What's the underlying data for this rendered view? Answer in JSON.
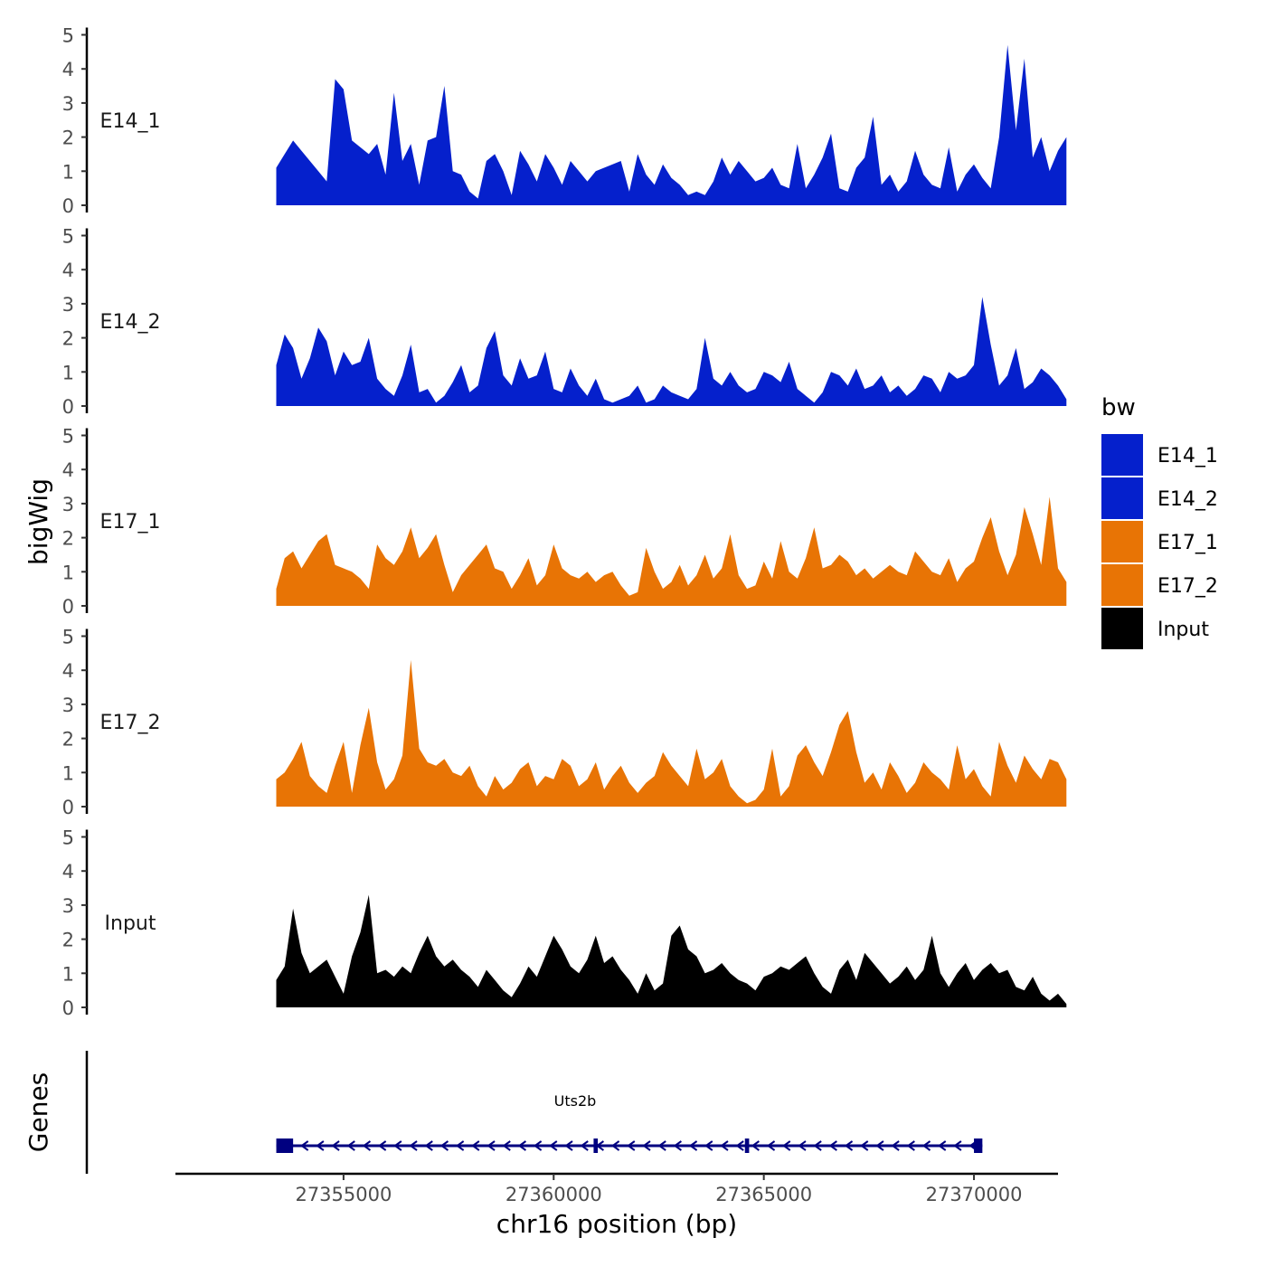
{
  "chart_data": {
    "type": "area",
    "ylabel": "bigWig",
    "xlabel": "chr16 position (bp)",
    "ylim": [
      0,
      5
    ],
    "yticks": [
      0,
      1,
      2,
      3,
      4,
      5
    ],
    "xlim": [
      27351000,
      27372000
    ],
    "xticks": [
      27355000,
      27360000,
      27365000,
      27370000
    ],
    "x": [
      27353400,
      27353600,
      27353800,
      27354000,
      27354200,
      27354400,
      27354600,
      27354800,
      27355000,
      27355200,
      27355400,
      27355600,
      27355800,
      27356000,
      27356200,
      27356400,
      27356600,
      27356800,
      27357000,
      27357200,
      27357400,
      27357600,
      27357800,
      27358000,
      27358200,
      27358400,
      27358600,
      27358800,
      27359000,
      27359200,
      27359400,
      27359600,
      27359800,
      27360000,
      27360200,
      27360400,
      27360600,
      27360800,
      27361000,
      27361200,
      27361400,
      27361600,
      27361800,
      27362000,
      27362200,
      27362400,
      27362600,
      27362800,
      27363000,
      27363200,
      27363400,
      27363600,
      27363800,
      27364000,
      27364200,
      27364400,
      27364600,
      27364800,
      27365000,
      27365200,
      27365400,
      27365600,
      27365800,
      27366000,
      27366200,
      27366400,
      27366600,
      27366800,
      27367000,
      27367200,
      27367400,
      27367600,
      27367800,
      27368000,
      27368200,
      27368400,
      27368600,
      27368800,
      27369000,
      27369200,
      27369400,
      27369600,
      27369800,
      27370000,
      27370200,
      27370400,
      27370600,
      27370800,
      27371000,
      27371200,
      27371400,
      27371600,
      27371800,
      27372000,
      27372200
    ],
    "series": [
      {
        "name": "E14_1",
        "color": "#0520CC",
        "values": [
          1.1,
          1.5,
          1.9,
          1.6,
          1.3,
          1.0,
          0.7,
          3.7,
          3.4,
          1.9,
          1.7,
          1.5,
          1.8,
          0.9,
          3.3,
          1.3,
          1.8,
          0.6,
          1.9,
          2.0,
          3.5,
          1.0,
          0.9,
          0.4,
          0.2,
          1.3,
          1.5,
          1.0,
          0.3,
          1.6,
          1.2,
          0.7,
          1.5,
          1.1,
          0.6,
          1.3,
          1.0,
          0.7,
          1.0,
          1.1,
          1.2,
          1.3,
          0.4,
          1.5,
          0.9,
          0.6,
          1.2,
          0.8,
          0.6,
          0.3,
          0.4,
          0.3,
          0.7,
          1.4,
          0.9,
          1.3,
          1.0,
          0.7,
          0.8,
          1.1,
          0.6,
          0.5,
          1.8,
          0.5,
          0.9,
          1.4,
          2.1,
          0.5,
          0.4,
          1.1,
          1.4,
          2.6,
          0.6,
          0.9,
          0.4,
          0.7,
          1.6,
          0.9,
          0.6,
          0.5,
          1.7,
          0.4,
          0.9,
          1.2,
          0.8,
          0.5,
          2.0,
          4.7,
          2.2,
          4.3,
          1.4,
          2.0,
          1.0,
          1.6,
          2.0
        ]
      },
      {
        "name": "E14_2",
        "color": "#0520CC",
        "values": [
          1.2,
          2.1,
          1.7,
          0.8,
          1.4,
          2.3,
          1.9,
          0.9,
          1.6,
          1.2,
          1.3,
          2.0,
          0.8,
          0.5,
          0.3,
          0.9,
          1.8,
          0.4,
          0.5,
          0.1,
          0.3,
          0.7,
          1.2,
          0.4,
          0.6,
          1.7,
          2.2,
          0.9,
          0.6,
          1.4,
          0.8,
          0.9,
          1.6,
          0.5,
          0.4,
          1.1,
          0.6,
          0.3,
          0.8,
          0.2,
          0.1,
          0.2,
          0.3,
          0.6,
          0.1,
          0.2,
          0.6,
          0.4,
          0.3,
          0.2,
          0.5,
          2.0,
          0.8,
          0.6,
          1.0,
          0.6,
          0.4,
          0.5,
          1.0,
          0.9,
          0.7,
          1.3,
          0.5,
          0.3,
          0.1,
          0.4,
          1.0,
          0.9,
          0.6,
          1.1,
          0.5,
          0.6,
          0.9,
          0.4,
          0.6,
          0.3,
          0.5,
          0.9,
          0.8,
          0.4,
          1.0,
          0.8,
          0.9,
          1.2,
          3.2,
          1.8,
          0.6,
          0.9,
          1.7,
          0.5,
          0.7,
          1.1,
          0.9,
          0.6,
          0.2
        ]
      },
      {
        "name": "E17_1",
        "color": "#E87405",
        "values": [
          0.5,
          1.4,
          1.6,
          1.1,
          1.5,
          1.9,
          2.1,
          1.2,
          1.1,
          1.0,
          0.8,
          0.5,
          1.8,
          1.4,
          1.2,
          1.6,
          2.3,
          1.4,
          1.7,
          2.1,
          1.2,
          0.4,
          0.9,
          1.2,
          1.5,
          1.8,
          1.1,
          1.0,
          0.5,
          0.9,
          1.4,
          0.6,
          0.9,
          1.8,
          1.1,
          0.9,
          0.8,
          1.0,
          0.7,
          0.9,
          1.0,
          0.6,
          0.3,
          0.4,
          1.7,
          1.0,
          0.5,
          0.7,
          1.2,
          0.6,
          0.9,
          1.5,
          0.8,
          1.1,
          2.1,
          0.9,
          0.5,
          0.6,
          1.3,
          0.8,
          1.9,
          1.0,
          0.8,
          1.4,
          2.3,
          1.1,
          1.2,
          1.5,
          1.3,
          0.9,
          1.1,
          0.8,
          1.0,
          1.2,
          1.0,
          0.9,
          1.6,
          1.3,
          1.0,
          0.9,
          1.4,
          0.7,
          1.1,
          1.3,
          2.0,
          2.6,
          1.6,
          0.9,
          1.5,
          2.9,
          2.1,
          1.2,
          3.2,
          1.1,
          0.7
        ]
      },
      {
        "name": "E17_2",
        "color": "#E87405",
        "values": [
          0.8,
          1.0,
          1.4,
          1.9,
          0.9,
          0.6,
          0.4,
          1.2,
          1.9,
          0.4,
          1.8,
          2.9,
          1.3,
          0.5,
          0.8,
          1.5,
          4.3,
          1.7,
          1.3,
          1.2,
          1.4,
          1.0,
          0.9,
          1.2,
          0.6,
          0.3,
          0.9,
          0.5,
          0.7,
          1.1,
          1.3,
          0.6,
          0.9,
          0.8,
          1.4,
          1.2,
          0.6,
          0.8,
          1.3,
          0.5,
          0.9,
          1.2,
          0.7,
          0.4,
          0.7,
          0.9,
          1.6,
          1.2,
          0.9,
          0.6,
          1.7,
          0.8,
          1.0,
          1.4,
          0.6,
          0.3,
          0.1,
          0.2,
          0.5,
          1.7,
          0.3,
          0.6,
          1.5,
          1.8,
          1.3,
          0.9,
          1.6,
          2.4,
          2.8,
          1.6,
          0.7,
          1.0,
          0.5,
          1.3,
          0.9,
          0.4,
          0.7,
          1.3,
          1.0,
          0.8,
          0.5,
          1.8,
          0.8,
          1.1,
          0.6,
          0.3,
          1.9,
          1.2,
          0.7,
          1.5,
          1.1,
          0.8,
          1.4,
          1.3,
          0.8
        ]
      },
      {
        "name": "Input",
        "color": "#000000",
        "values": [
          0.8,
          1.2,
          2.9,
          1.6,
          1.0,
          1.2,
          1.4,
          0.9,
          0.4,
          1.5,
          2.2,
          3.3,
          1.0,
          1.1,
          0.9,
          1.2,
          1.0,
          1.6,
          2.1,
          1.5,
          1.2,
          1.4,
          1.1,
          0.9,
          0.6,
          1.1,
          0.8,
          0.5,
          0.3,
          0.7,
          1.2,
          0.9,
          1.5,
          2.1,
          1.7,
          1.2,
          1.0,
          1.4,
          2.1,
          1.3,
          1.5,
          1.1,
          0.8,
          0.4,
          1.0,
          0.5,
          0.7,
          2.1,
          2.4,
          1.7,
          1.5,
          1.0,
          1.1,
          1.3,
          1.0,
          0.8,
          0.7,
          0.5,
          0.9,
          1.0,
          1.2,
          1.1,
          1.3,
          1.5,
          1.0,
          0.6,
          0.4,
          1.1,
          1.4,
          0.8,
          1.6,
          1.3,
          1.0,
          0.7,
          0.9,
          1.2,
          0.8,
          1.1,
          2.1,
          1.0,
          0.6,
          1.0,
          1.3,
          0.8,
          1.1,
          1.3,
          1.0,
          1.1,
          0.6,
          0.5,
          0.9,
          0.4,
          0.2,
          0.4,
          0.1
        ]
      }
    ],
    "legend": {
      "title": "bw",
      "items": [
        {
          "label": "E14_1",
          "color": "#0520CC"
        },
        {
          "label": "E14_2",
          "color": "#0520CC"
        },
        {
          "label": "E17_1",
          "color": "#E87405"
        },
        {
          "label": "E17_2",
          "color": "#E87405"
        },
        {
          "label": "Input",
          "color": "#000000"
        }
      ]
    },
    "gene_track": {
      "label": "Genes",
      "gene_name": "Uts2b",
      "start": 27353400,
      "end": 27370200,
      "strand": "-",
      "color": "#000080",
      "exons": [
        {
          "start": 27353400,
          "end": 27353800
        },
        {
          "start": 27360950,
          "end": 27361050
        },
        {
          "start": 27364550,
          "end": 27364650
        },
        {
          "start": 27370000,
          "end": 27370200
        }
      ]
    }
  }
}
